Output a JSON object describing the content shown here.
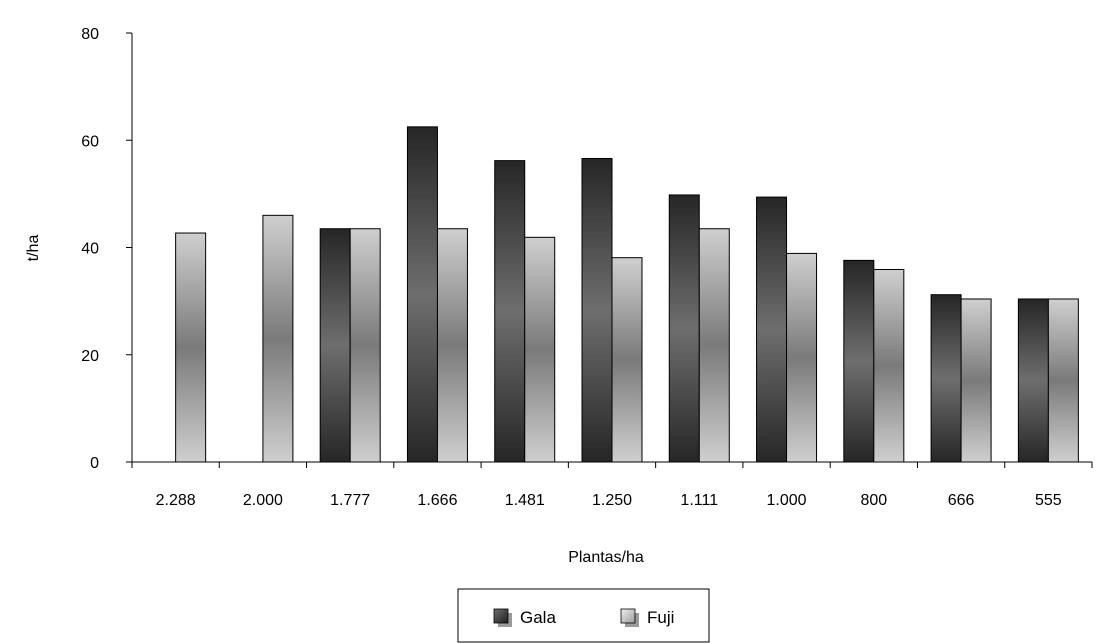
{
  "chart_data": {
    "type": "bar",
    "title": "",
    "xlabel": "Plantas/ha",
    "ylabel": "t/ha",
    "categories": [
      "2.288",
      "2.000",
      "1.777",
      "1.666",
      "1.481",
      "1.250",
      "1.111",
      "1.000",
      "800",
      "666",
      "555"
    ],
    "series": [
      {
        "name": "Gala",
        "values": [
          null,
          null,
          43.5,
          62.5,
          56.2,
          56.6,
          49.8,
          49.4,
          37.6,
          31.2,
          30.4
        ]
      },
      {
        "name": "Fuji",
        "values": [
          42.7,
          46.0,
          43.5,
          43.5,
          41.9,
          38.1,
          43.5,
          38.9,
          35.9,
          30.4,
          30.4
        ]
      }
    ],
    "ylim": [
      0,
      80
    ],
    "yticks": [
      0,
      20,
      40,
      60,
      80
    ],
    "grid": false,
    "legend_position": "bottom-center",
    "colors": {
      "Gala": {
        "dark": "#262626",
        "mid": "#6e6e6e"
      },
      "Fuji": {
        "dark": "#7a7a7a",
        "light": "#cfcfcf"
      },
      "axis": "#000000"
    }
  }
}
